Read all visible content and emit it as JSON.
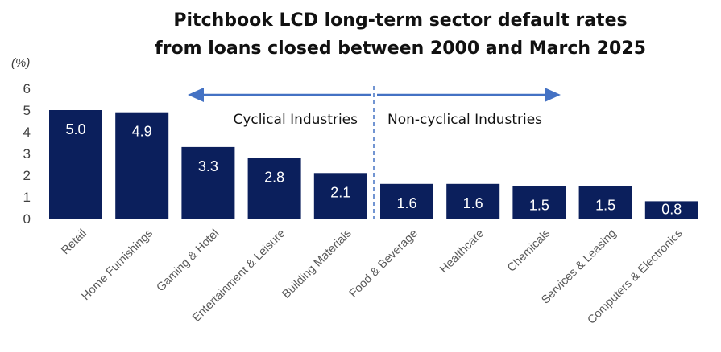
{
  "chart_data": {
    "type": "bar",
    "title_lines": [
      "Pitchbook LCD long-term sector default rates",
      "from loans closed between 2000 and March 2025"
    ],
    "ylabel": "(%)",
    "ylim": [
      0,
      6
    ],
    "yticks": [
      "0",
      "1",
      "2",
      "3",
      "4",
      "5",
      "6"
    ],
    "grid": false,
    "categories": [
      "Retail",
      "Home Furnishings",
      "Gaming & Hotel",
      "Entertainment & Leisure",
      "Building Materials",
      "Food & Beverage",
      "Healthcare",
      "Chemicals",
      "Services & Leasing",
      "Computers & Electronics"
    ],
    "values": [
      5.0,
      4.9,
      3.3,
      2.8,
      2.1,
      1.6,
      1.6,
      1.5,
      1.5,
      0.8
    ],
    "value_labels": [
      "5.0",
      "4.9",
      "3.3",
      "2.8",
      "2.1",
      "1.6",
      "1.6",
      "1.5",
      "1.5",
      "0.8"
    ],
    "bar_color": "#0b1f5c",
    "groups": [
      {
        "label": "Cyclical Industries",
        "arrow": "left"
      },
      {
        "label": "Non-cyclical Industries",
        "arrow": "right"
      }
    ],
    "annotation_color": "#4472c4"
  }
}
